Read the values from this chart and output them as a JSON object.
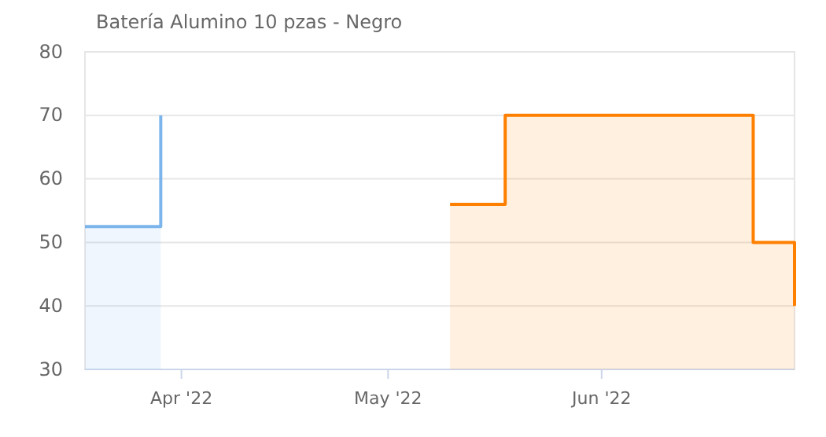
{
  "chart_data": {
    "type": "area",
    "title": "Batería Alumino 10 pzas - Negro",
    "xlim": [
      "2022-03-18",
      "2022-06-29"
    ],
    "xticks": [
      {
        "value": "2022-04-01",
        "label": "Apr '22"
      },
      {
        "value": "2022-05-01",
        "label": "May '22"
      },
      {
        "value": "2022-06-01",
        "label": "Jun '22"
      }
    ],
    "ylim": [
      30,
      80
    ],
    "yticks": [
      30,
      40,
      50,
      60,
      70,
      80
    ],
    "grid": "y",
    "series": [
      {
        "color": "#7cb5ec",
        "x": [
          "2022-03-18",
          "2022-03-29",
          "2022-03-29"
        ],
        "values": [
          52.5,
          52.5,
          70
        ]
      },
      {
        "color": "#ff8000",
        "x": [
          "2022-05-10",
          "2022-05-18",
          "2022-05-18",
          "2022-06-23",
          "2022-06-23",
          "2022-06-29",
          "2022-06-29"
        ],
        "values": [
          56,
          56,
          70,
          70,
          50,
          50,
          40
        ]
      }
    ]
  }
}
